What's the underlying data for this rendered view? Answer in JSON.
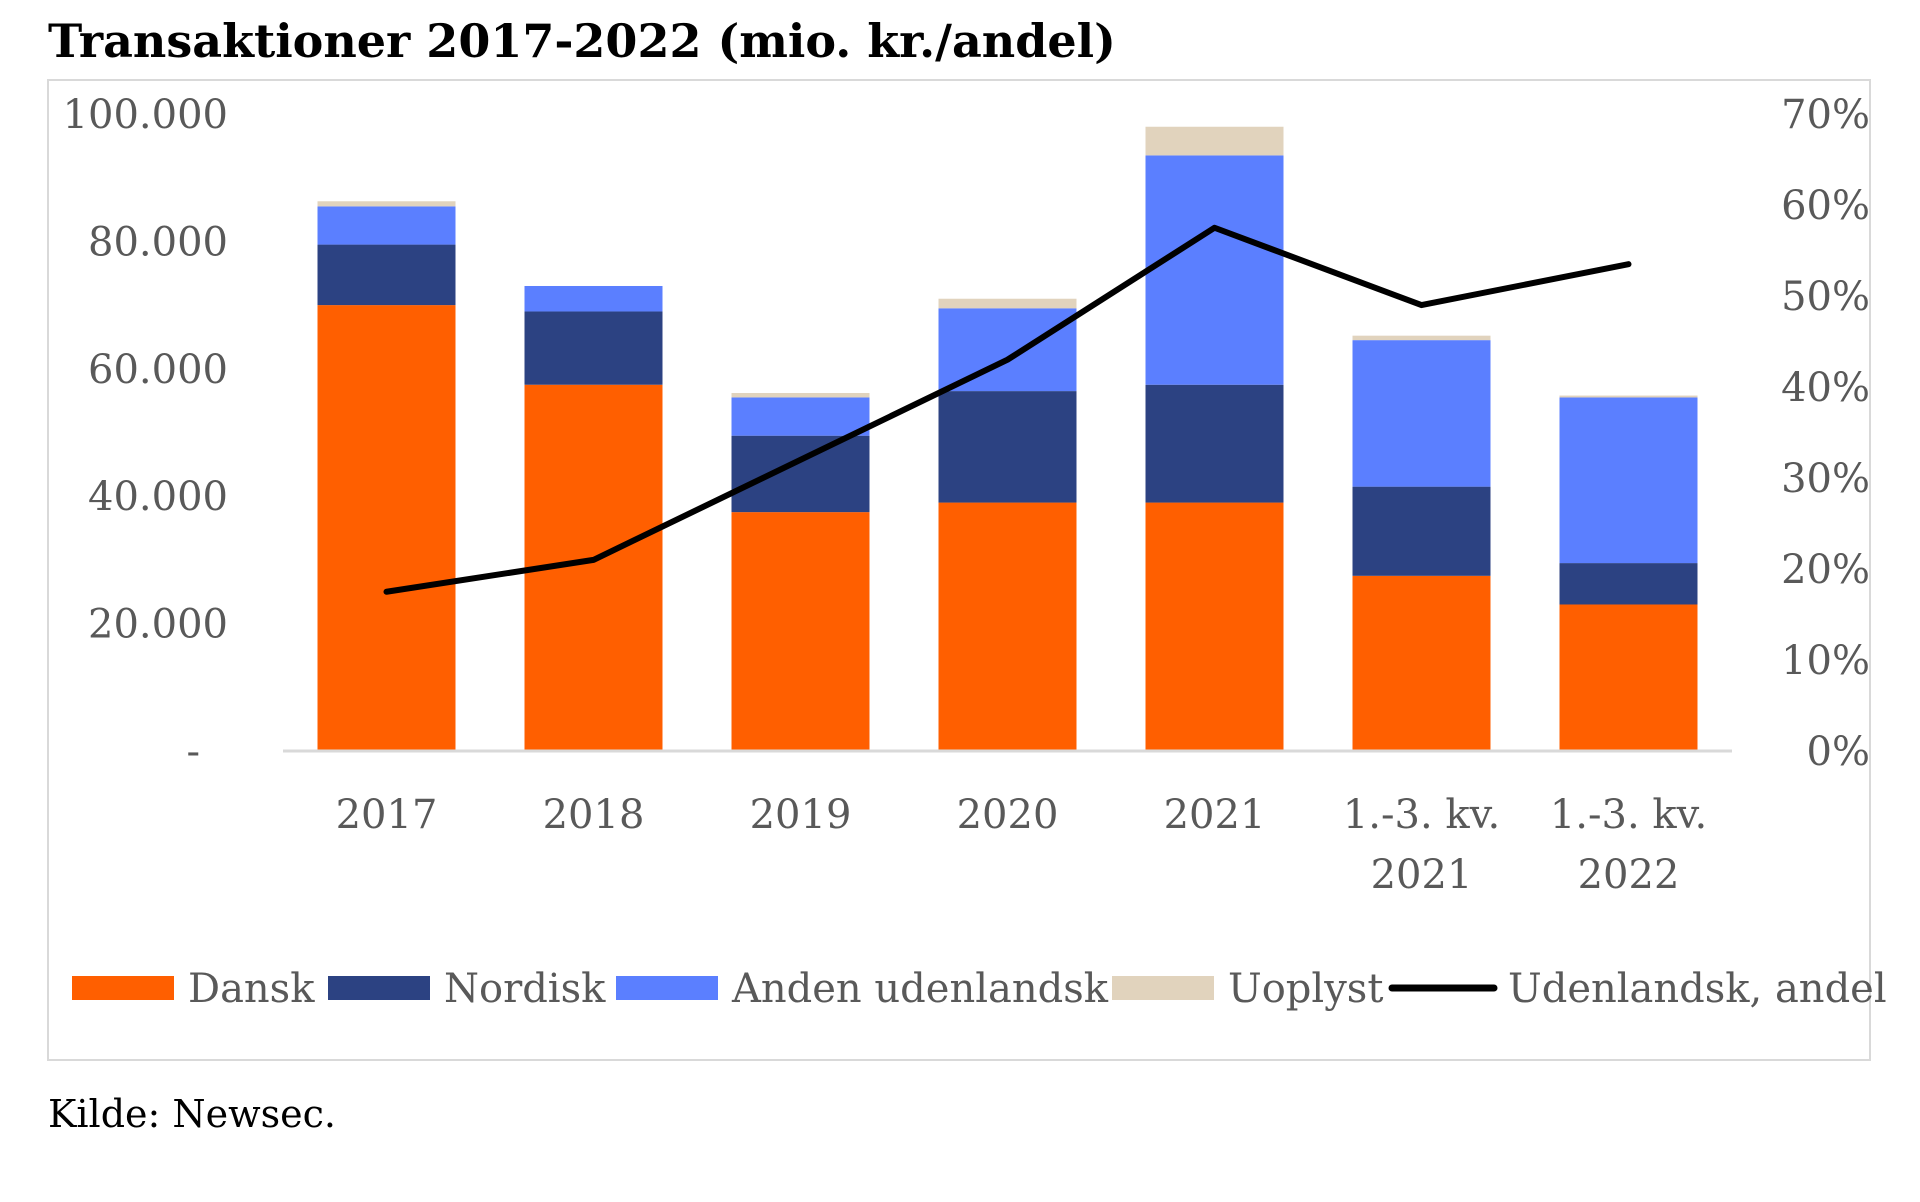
{
  "chart_data": {
    "type": "bar",
    "stacked": true,
    "title": "Transaktioner 2017-2022 (mio. kr./andel)",
    "categories": [
      "2017",
      "2018",
      "2019",
      "2020",
      "2021",
      "1.-3. kv. 2021",
      "1.-3. kv. 2022"
    ],
    "category_labels": [
      [
        "2017"
      ],
      [
        "2018"
      ],
      [
        "2019"
      ],
      [
        "2020"
      ],
      [
        "2021"
      ],
      [
        "1.-3. kv.",
        "2021"
      ],
      [
        "1.-3. kv.",
        "2022"
      ]
    ],
    "series": [
      {
        "name": "Dansk",
        "color": "#ff5f00",
        "values": [
          70000,
          57500,
          37500,
          39000,
          39000,
          27500,
          23000
        ]
      },
      {
        "name": "Nordisk",
        "color": "#2c4282",
        "values": [
          9500,
          11500,
          12000,
          17500,
          18500,
          14000,
          6500
        ]
      },
      {
        "name": "Anden udenlandsk",
        "color": "#5b7fff",
        "values": [
          6000,
          4000,
          6000,
          13000,
          36000,
          23000,
          26000
        ]
      },
      {
        "name": "Uoplyst",
        "color": "#e1d3bd",
        "values": [
          800,
          0,
          700,
          1500,
          4500,
          700,
          300
        ]
      }
    ],
    "line_series": {
      "name": "Udenlandsk, andel",
      "color": "#000000",
      "axis": "right",
      "values": [
        17.5,
        21,
        32,
        43,
        57.5,
        49,
        53.5
      ]
    },
    "y_left": {
      "ylim": [
        0,
        100000
      ],
      "ticks": [
        "-",
        "20.000",
        "40.000",
        "60.000",
        "80.000",
        "100.000"
      ]
    },
    "y_right": {
      "ylim": [
        0,
        70
      ],
      "ticks": [
        "0%",
        "10%",
        "20%",
        "30%",
        "40%",
        "50%",
        "60%",
        "70%"
      ]
    },
    "xlabel": "",
    "ylabel": "",
    "legend_position": "bottom",
    "source": "Kilde: Newsec."
  }
}
